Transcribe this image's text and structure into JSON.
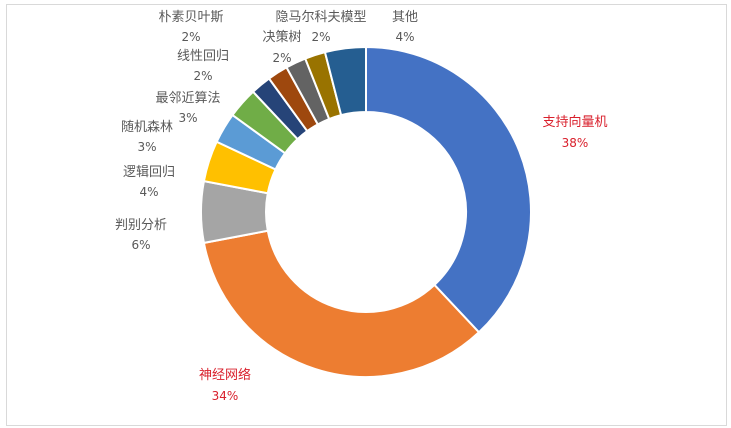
{
  "chart_data": {
    "type": "pie",
    "donut": true,
    "title": "",
    "legend": "none",
    "slices": [
      {
        "name": "支持向量机",
        "value": 38,
        "label": "38%",
        "color": "#4472c4",
        "highlight": true
      },
      {
        "name": "神经网络",
        "value": 34,
        "label": "34%",
        "color": "#ed7d31",
        "highlight": true
      },
      {
        "name": "判别分析",
        "value": 6,
        "label": "6%",
        "color": "#a5a5a5"
      },
      {
        "name": "逻辑回归",
        "value": 4,
        "label": "4%",
        "color": "#ffc000"
      },
      {
        "name": "随机森林",
        "value": 3,
        "label": "3%",
        "color": "#5b9bd5"
      },
      {
        "name": "最邻近算法",
        "value": 3,
        "label": "3%",
        "color": "#70ad47"
      },
      {
        "name": "线性回归",
        "value": 2,
        "label": "2%",
        "color": "#264478"
      },
      {
        "name": "朴素贝叶斯",
        "value": 2,
        "label": "2%",
        "color": "#9e480e"
      },
      {
        "name": "决策树",
        "value": 2,
        "label": "2%",
        "color": "#636363"
      },
      {
        "name": "隐马尔科夫模型",
        "value": 2,
        "label": "2%",
        "color": "#997300"
      },
      {
        "name": "其他",
        "value": 4,
        "label": "4%",
        "color": "#255e91"
      }
    ]
  }
}
